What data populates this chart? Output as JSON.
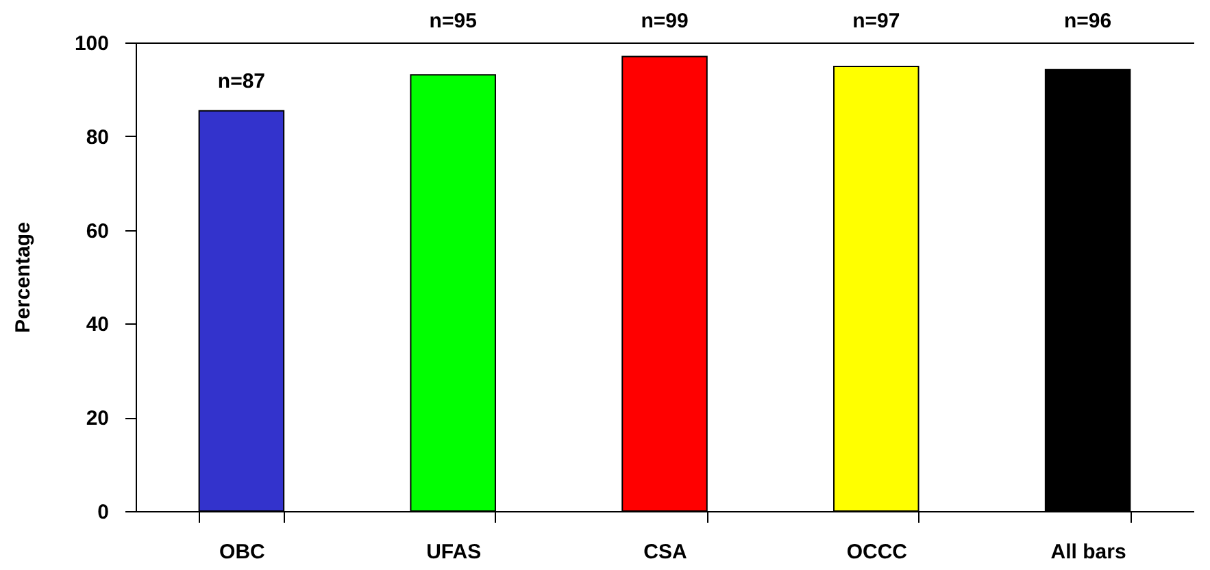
{
  "chart_data": {
    "type": "bar",
    "ylabel": "Percentage",
    "categories": [
      "OBC",
      "UFAS",
      "CSA",
      "OCCC",
      "All bars"
    ],
    "values": [
      85.4,
      93.1,
      97.0,
      94.9,
      94.2
    ],
    "colors": [
      "#3333cc",
      "#00ff00",
      "#ff0000",
      "#ffff00",
      "#000000"
    ],
    "annotations": [
      {
        "text": "n=87",
        "x": "OBC",
        "y": 85.4
      },
      {
        "text": "n=95",
        "x": "UFAS",
        "y": 93.1
      },
      {
        "text": "n=99",
        "x": "CSA",
        "y": 97.0
      },
      {
        "text": "n=97",
        "x": "OCCC",
        "y": 94.9
      },
      {
        "text": "n=96",
        "x": "All bars",
        "y": 94.2
      }
    ],
    "ylim": [
      0,
      100
    ],
    "yticks": [
      0,
      20,
      40,
      60,
      80,
      100
    ],
    "grid": false,
    "legend": false
  }
}
